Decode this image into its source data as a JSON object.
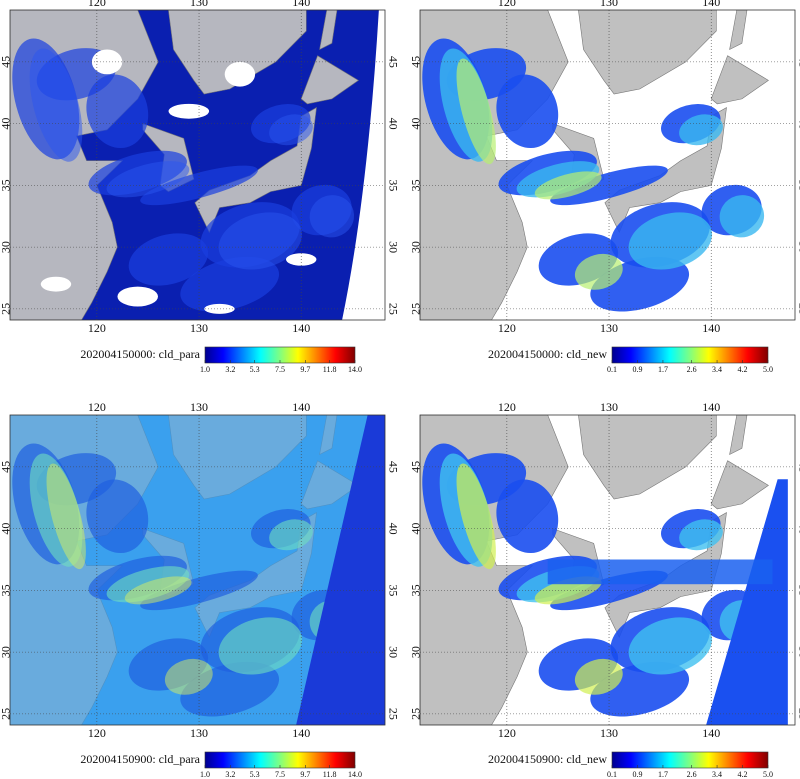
{
  "map": {
    "lonlim": [
      111.5,
      148.2
    ],
    "latlim": [
      24.1,
      49.2
    ],
    "lon_ticks": [
      120,
      130,
      140
    ],
    "lat_ticks": [
      45,
      40,
      35,
      30,
      25
    ]
  },
  "panels": [
    {
      "title": "202004150000: cld_para",
      "colorbar": {
        "lim": [
          1.0,
          14.0
        ],
        "ticks": [
          {
            "value": 1.0,
            "label": "1.0"
          },
          {
            "value": 3.2,
            "label": "3.2"
          },
          {
            "value": 5.3,
            "label": "5.3"
          },
          {
            "value": 7.5,
            "label": "7.5"
          },
          {
            "value": 9.7,
            "label": "9.7"
          },
          {
            "value": 11.8,
            "label": "11.8"
          },
          {
            "value": 14.0,
            "label": "14.0"
          }
        ]
      }
    },
    {
      "title": "202004150000: cld_new",
      "colorbar": {
        "lim": [
          0.1,
          5.0
        ],
        "ticks": [
          {
            "value": 0.1,
            "label": "0.1"
          },
          {
            "value": 0.9,
            "label": "0.9"
          },
          {
            "value": 1.7,
            "label": "1.7"
          },
          {
            "value": 2.6,
            "label": "2.6"
          },
          {
            "value": 3.4,
            "label": "3.4"
          },
          {
            "value": 4.2,
            "label": "4.2"
          },
          {
            "value": 5.0,
            "label": "5.0"
          }
        ]
      }
    },
    {
      "title": "202004150900: cld_para",
      "colorbar": {
        "lim": [
          1.0,
          14.0
        ],
        "ticks": [
          {
            "value": 1.0,
            "label": "1.0"
          },
          {
            "value": 3.2,
            "label": "3.2"
          },
          {
            "value": 5.3,
            "label": "5.3"
          },
          {
            "value": 7.5,
            "label": "7.5"
          },
          {
            "value": 9.7,
            "label": "9.7"
          },
          {
            "value": 11.8,
            "label": "11.8"
          },
          {
            "value": 14.0,
            "label": "14.0"
          }
        ]
      }
    },
    {
      "title": "202004150900: cld_new",
      "colorbar": {
        "lim": [
          0.1,
          5.0
        ],
        "ticks": [
          {
            "value": 0.1,
            "label": "0.1"
          },
          {
            "value": 0.9,
            "label": "0.9"
          },
          {
            "value": 1.7,
            "label": "1.7"
          },
          {
            "value": 2.6,
            "label": "2.6"
          },
          {
            "value": 3.4,
            "label": "3.4"
          },
          {
            "value": 4.2,
            "label": "4.2"
          },
          {
            "value": 5.0,
            "label": "5.0"
          }
        ]
      }
    }
  ]
}
